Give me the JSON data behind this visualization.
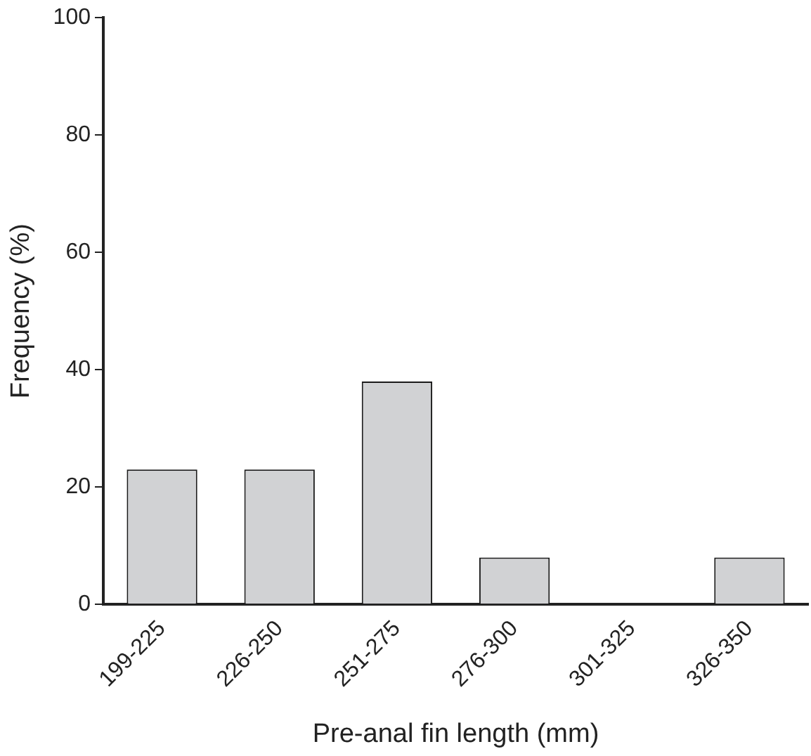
{
  "chart_data": {
    "type": "bar",
    "xlabel": "Pre-anal fin length (mm)",
    "ylabel": "Frequency (%)",
    "categories": [
      "199-225",
      "226-250",
      "251-275",
      "276-300",
      "301-325",
      "326-350"
    ],
    "values": [
      23,
      23,
      38,
      8,
      0,
      8
    ],
    "color": "#d1d2d4",
    "ylim": [
      0,
      100
    ],
    "yticks": [
      0,
      20,
      40,
      60,
      80,
      100
    ],
    "grid": false,
    "legend": false
  }
}
